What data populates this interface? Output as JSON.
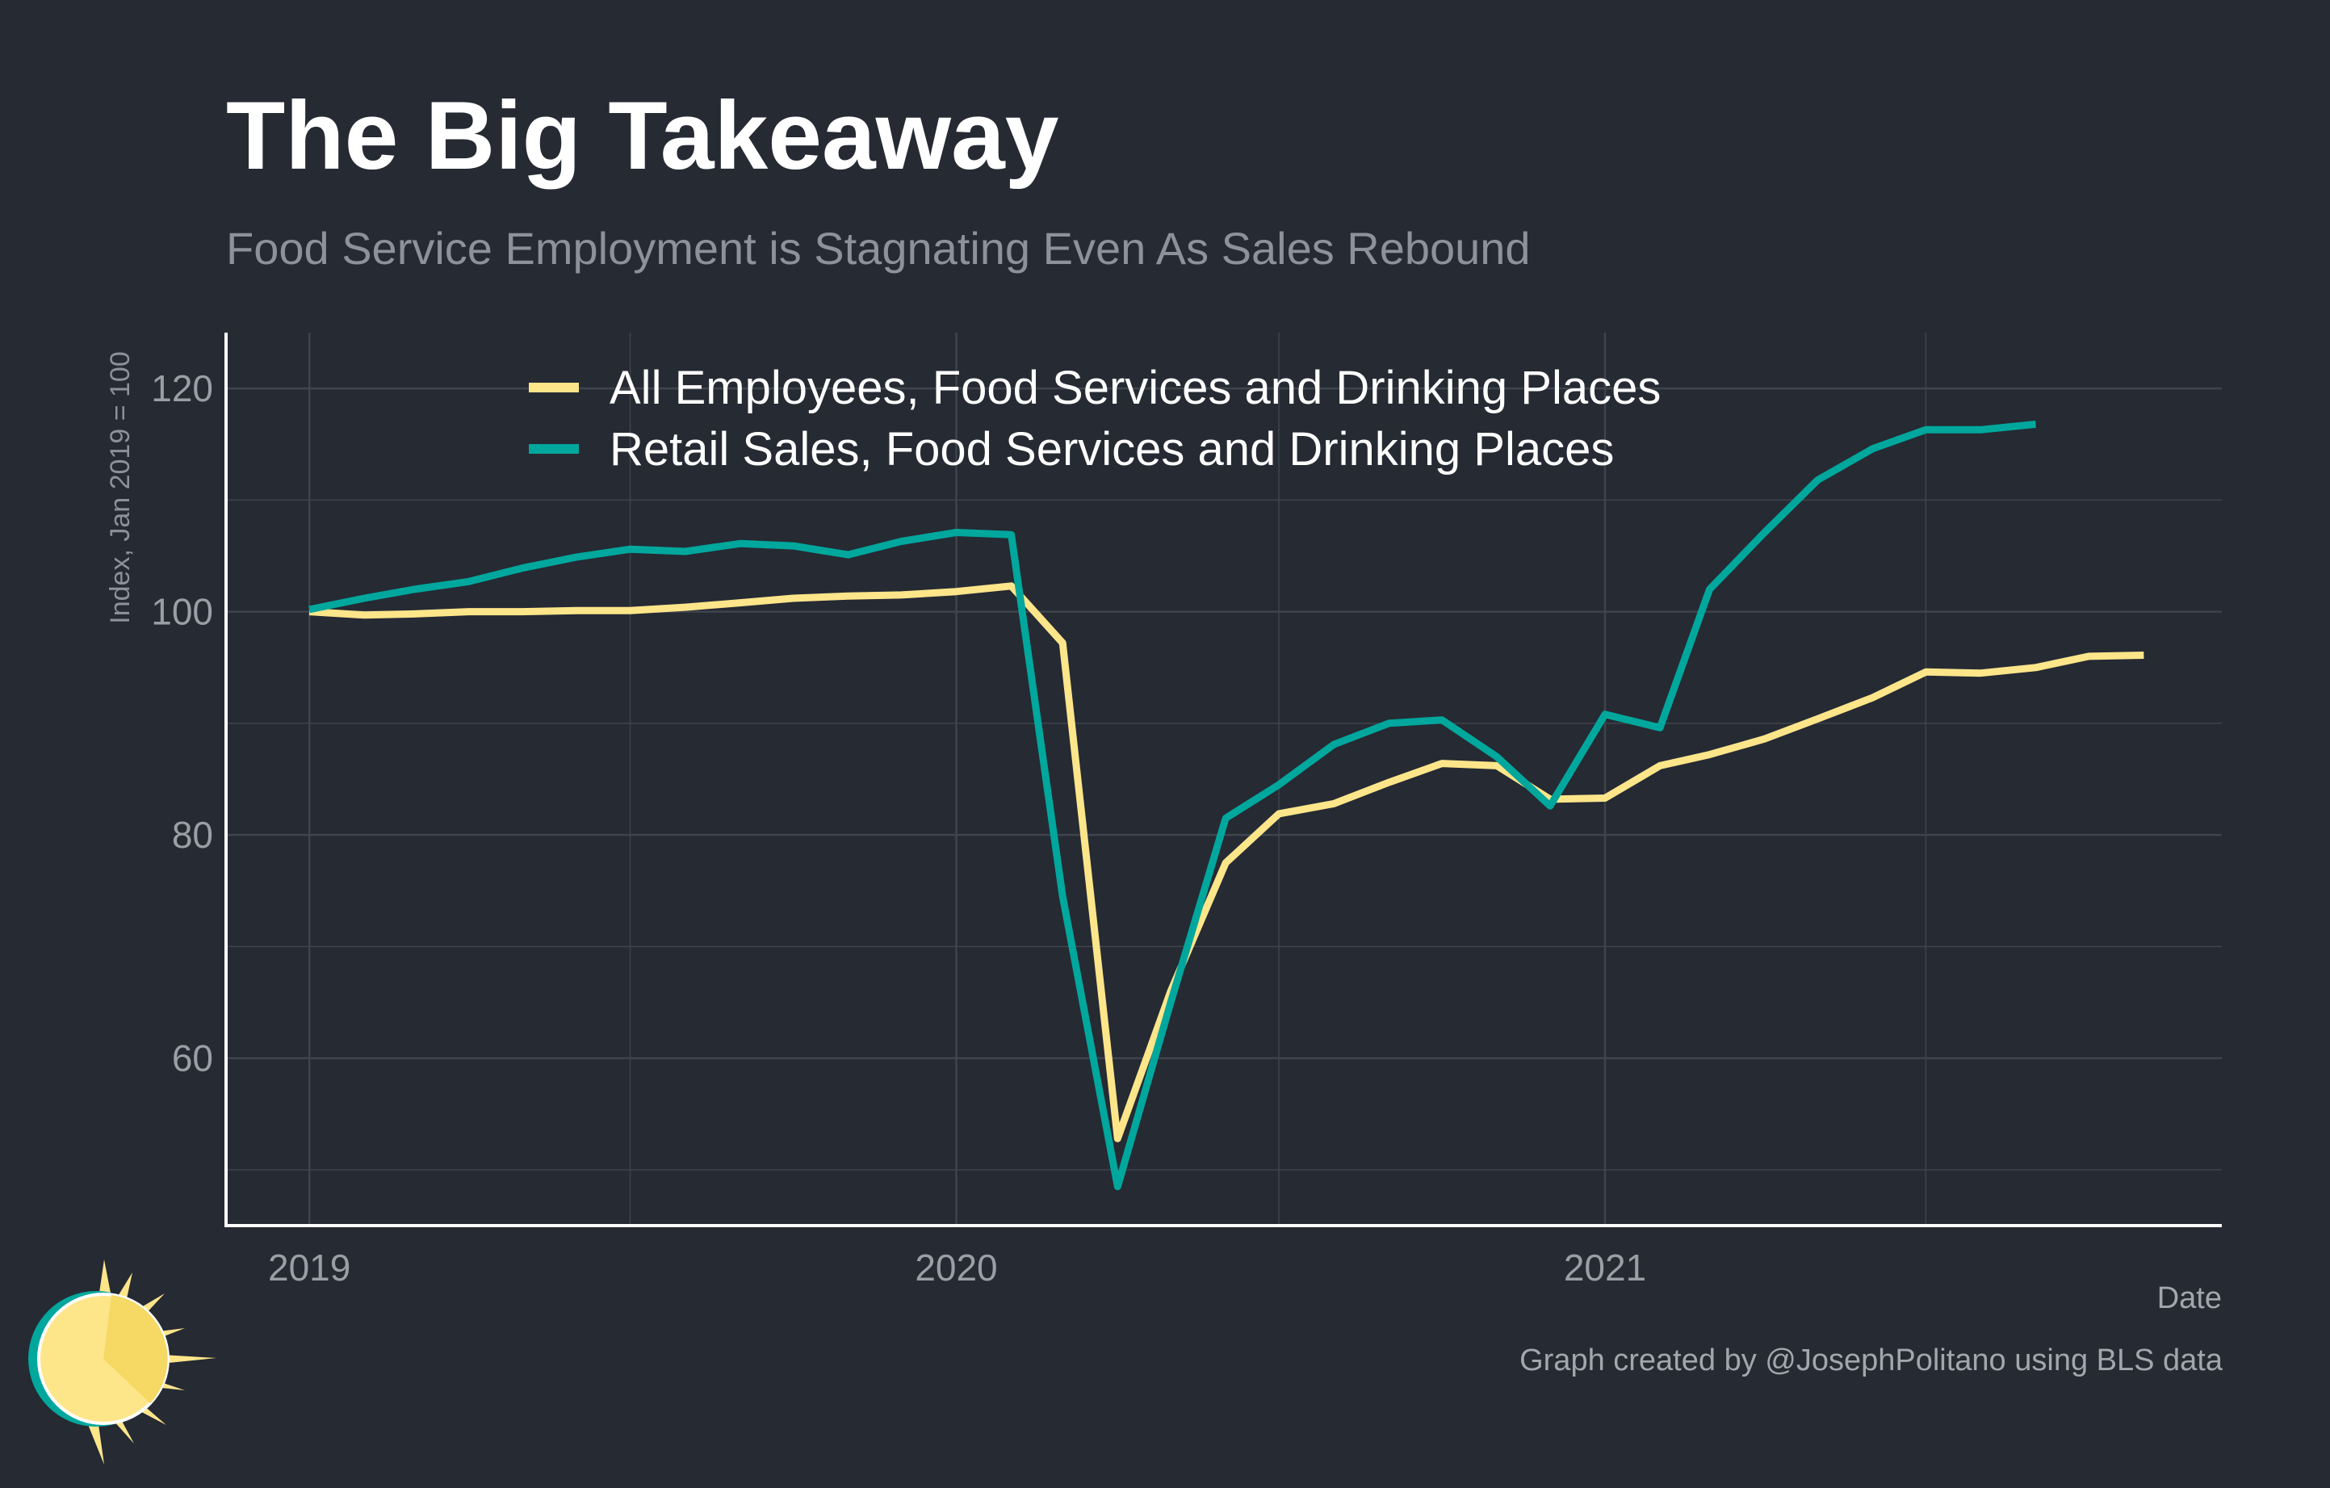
{
  "title": "The Big Takeaway",
  "subtitle": "Food Service Employment is Stagnating Even As Sales Rebound",
  "footnote": "Graph created by @JosephPolitano using BLS data",
  "colors": {
    "background": "#252a33",
    "employees": "#fde58a",
    "sales": "#00a79d",
    "grid": "#3f444d",
    "axis": "#ffffff",
    "tick_text": "#9a9ea5"
  },
  "chart_data": {
    "type": "line",
    "xlabel": "Date",
    "ylabel": "Index, Jan 2019 = 100",
    "xlim": [
      "2018-11-15",
      "2021-12-15"
    ],
    "ylim": [
      45,
      125
    ],
    "x_ticks": [
      {
        "date": "2019-01-01",
        "label": "2019"
      },
      {
        "date": "2020-01-01",
        "label": "2020"
      },
      {
        "date": "2021-01-01",
        "label": "2021"
      }
    ],
    "y_ticks": [
      60,
      80,
      100,
      120
    ],
    "legend_position": "top",
    "grid": true,
    "series": [
      {
        "name": "All Employees, Food Services and Drinking Places",
        "color": "#fde58a",
        "x": [
          "2019-01",
          "2019-02",
          "2019-03",
          "2019-04",
          "2019-05",
          "2019-06",
          "2019-07",
          "2019-08",
          "2019-09",
          "2019-10",
          "2019-11",
          "2019-12",
          "2020-01",
          "2020-02",
          "2020-03",
          "2020-04",
          "2020-05",
          "2020-06",
          "2020-07",
          "2020-08",
          "2020-09",
          "2020-10",
          "2020-11",
          "2020-12",
          "2021-01",
          "2021-02",
          "2021-03",
          "2021-04",
          "2021-05",
          "2021-06",
          "2021-07",
          "2021-08",
          "2021-09",
          "2021-10",
          "2021-11"
        ],
        "values": [
          100.0,
          99.7,
          99.8,
          100.0,
          100.0,
          100.1,
          100.1,
          100.4,
          100.8,
          101.2,
          101.4,
          101.5,
          101.8,
          102.3,
          97.2,
          52.8,
          66.0,
          77.5,
          81.9,
          82.8,
          84.7,
          86.4,
          86.2,
          83.2,
          83.3,
          86.2,
          87.2,
          88.6,
          90.4,
          92.3,
          94.6,
          94.5,
          95.0,
          96.0,
          96.1
        ]
      },
      {
        "name": "Retail Sales, Food Services and Drinking Places",
        "color": "#00a79d",
        "x": [
          "2019-01",
          "2019-02",
          "2019-03",
          "2019-04",
          "2019-05",
          "2019-06",
          "2019-07",
          "2019-08",
          "2019-09",
          "2019-10",
          "2019-11",
          "2019-12",
          "2020-01",
          "2020-02",
          "2020-03",
          "2020-04",
          "2020-05",
          "2020-06",
          "2020-07",
          "2020-08",
          "2020-09",
          "2020-10",
          "2020-11",
          "2020-12",
          "2021-01",
          "2021-02",
          "2021-03",
          "2021-04",
          "2021-05",
          "2021-06",
          "2021-07",
          "2021-08",
          "2021-09"
        ],
        "values": [
          100.2,
          101.2,
          102.0,
          102.7,
          103.9,
          104.9,
          105.6,
          105.4,
          106.1,
          105.9,
          105.1,
          106.3,
          107.1,
          106.9,
          74.5,
          48.5,
          65.0,
          81.5,
          84.5,
          88.1,
          90.0,
          90.3,
          87.0,
          82.6,
          90.8,
          89.6,
          102.0,
          107.1,
          111.8,
          114.6,
          116.3,
          116.3,
          116.8
        ]
      }
    ]
  }
}
